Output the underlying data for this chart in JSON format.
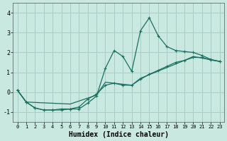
{
  "xlabel": "Humidex (Indice chaleur)",
  "background_color": "#c8e8e0",
  "line_color": "#1a7060",
  "grid_color": "#a8ccc8",
  "xlim": [
    -0.5,
    23.5
  ],
  "ylim": [
    -1.5,
    4.5
  ],
  "xticks": [
    0,
    1,
    2,
    3,
    4,
    5,
    6,
    7,
    8,
    9,
    10,
    11,
    12,
    13,
    14,
    15,
    16,
    17,
    18,
    19,
    20,
    21,
    22,
    23
  ],
  "yticks": [
    -1,
    0,
    1,
    2,
    3,
    4
  ],
  "line1_x": [
    0,
    1,
    2,
    3,
    4,
    5,
    6,
    7,
    8,
    9,
    10,
    11,
    12,
    13,
    14,
    15,
    16,
    17,
    18,
    19,
    20,
    21,
    22,
    23
  ],
  "line1_y": [
    0.1,
    -0.5,
    -0.8,
    -0.9,
    -0.9,
    -0.9,
    -0.85,
    -0.85,
    -0.55,
    -0.2,
    1.2,
    2.1,
    1.8,
    1.05,
    3.1,
    3.75,
    2.85,
    2.3,
    2.1,
    2.05,
    2.0,
    1.85,
    1.65,
    1.55
  ],
  "line2_x": [
    0,
    1,
    2,
    3,
    4,
    5,
    6,
    7,
    8,
    9,
    10,
    11,
    12,
    13,
    14,
    15,
    16,
    17,
    18,
    19,
    20,
    21,
    22,
    23
  ],
  "line2_y": [
    0.1,
    -0.5,
    -0.8,
    -0.9,
    -0.9,
    -0.85,
    -0.85,
    -0.75,
    -0.35,
    -0.1,
    0.35,
    0.45,
    0.35,
    0.35,
    0.65,
    0.9,
    1.1,
    1.3,
    1.5,
    1.6,
    1.75,
    1.75,
    1.62,
    1.55
  ],
  "line3_x": [
    0,
    1,
    6,
    9,
    10,
    13,
    14,
    19,
    20,
    23
  ],
  "line3_y": [
    0.1,
    -0.5,
    -0.6,
    -0.15,
    0.5,
    0.35,
    0.7,
    1.6,
    1.8,
    1.55
  ]
}
